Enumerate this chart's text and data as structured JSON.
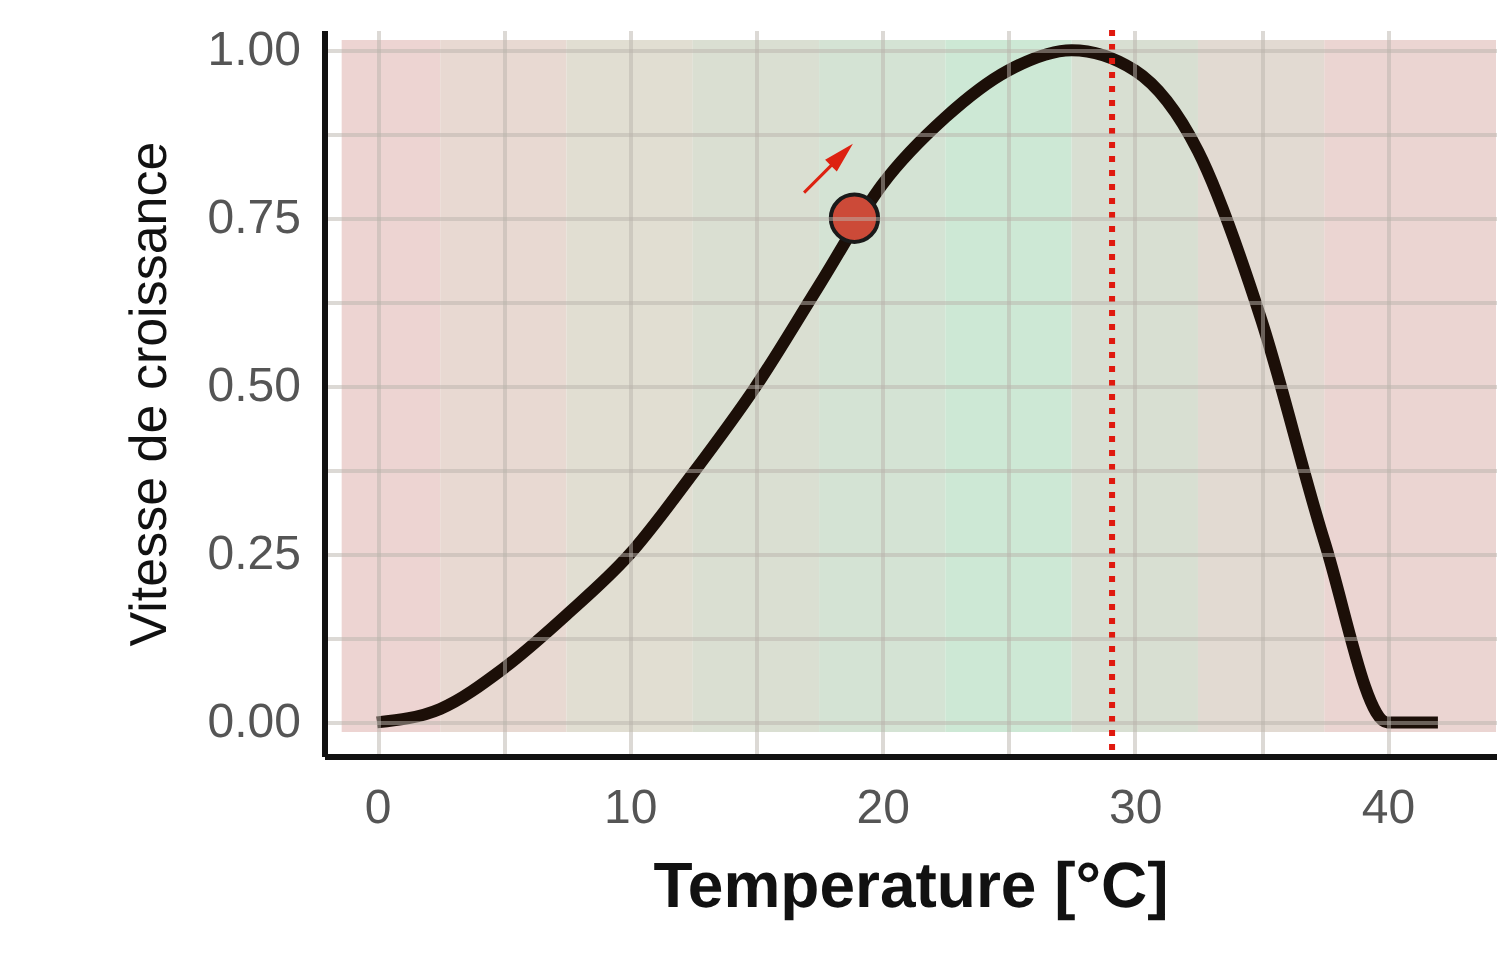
{
  "chart_data": {
    "type": "line",
    "xlabel": "Temperature [°C]",
    "ylabel": "Vitesse de croissance",
    "xlim": [
      -2.1,
      44.3
    ],
    "ylim": [
      -0.05,
      1.03
    ],
    "xticks": [
      0,
      {
        "value": 5,
        "label": null
      },
      10,
      {
        "value": 15,
        "label": null
      },
      20,
      {
        "value": 25,
        "label": null
      },
      30,
      {
        "value": 35,
        "label": null
      },
      40
    ],
    "yticks": [
      {
        "value": 0,
        "label": "0.00"
      },
      {
        "value": 0.125,
        "label": null
      },
      {
        "value": 0.25,
        "label": "0.25"
      },
      {
        "value": 0.375,
        "label": null
      },
      {
        "value": 0.5,
        "label": "0.50"
      },
      {
        "value": 0.625,
        "label": null
      },
      {
        "value": 0.75,
        "label": "0.75"
      },
      {
        "value": 0.875,
        "label": null
      },
      {
        "value": 1,
        "label": "1.00"
      }
    ],
    "grid": true,
    "line_style": "solid",
    "series": [
      {
        "color": "#1c0f08",
        "x": [
          0,
          2.5,
          5,
          7.5,
          10,
          12.5,
          15,
          17.5,
          20,
          22.5,
          25,
          27.5,
          30,
          32.5,
          35,
          37.5,
          40,
          42
        ],
        "values": [
          0,
          0.02,
          0.08,
          0.16,
          0.25,
          0.37,
          0.5,
          0.65,
          0.8,
          0.9,
          0.97,
          1.0,
          0.97,
          0.85,
          0.6,
          0.27,
          0,
          0
        ]
      },
      {
        "type": "scatter",
        "color": "#cc4a38",
        "marker": "circle",
        "x": [
          18.9
        ],
        "values": [
          0.75
        ]
      }
    ],
    "ref_lines": [
      {
        "axis": "x",
        "value": 29.1,
        "color": "#e0180e",
        "line_style": "dotted"
      }
    ],
    "bands": [
      {
        "axis": "x",
        "from": -1.4,
        "to": 2.5,
        "color": "#ebcfcd"
      },
      {
        "axis": "x",
        "from": 2.5,
        "to": 7.5,
        "color": "#e6d5cd"
      },
      {
        "axis": "x",
        "from": 7.5,
        "to": 12.5,
        "color": "#dedacd"
      },
      {
        "axis": "x",
        "from": 12.5,
        "to": 17.5,
        "color": "#d6dccd"
      },
      {
        "axis": "x",
        "from": 17.5,
        "to": 22.5,
        "color": "#cfe0cf"
      },
      {
        "axis": "x",
        "from": 22.5,
        "to": 27.5,
        "color": "#c8e5d0"
      },
      {
        "axis": "x",
        "from": 27.5,
        "to": 32.5,
        "color": "#d4dccd"
      },
      {
        "axis": "x",
        "from": 32.5,
        "to": 37.5,
        "color": "#dfd6cd"
      },
      {
        "axis": "x",
        "from": 37.5,
        "to": 44.3,
        "color": "#e9d0cd"
      }
    ]
  }
}
